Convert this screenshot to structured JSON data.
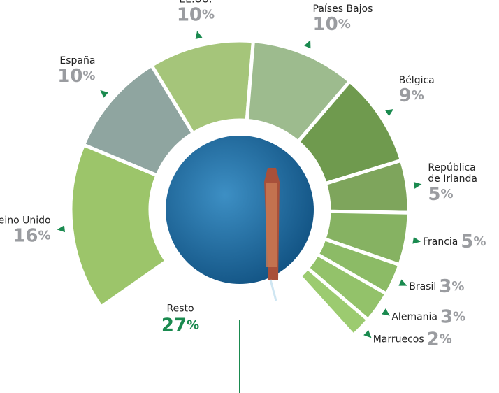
{
  "chart_data": {
    "type": "pie",
    "categories": [
      "Reino Unido",
      "España",
      "EE.UU.",
      "Países Bajos",
      "Bélgica",
      "República de Irlanda",
      "Francia",
      "Brasil",
      "Alemania",
      "Marruecos",
      "Resto"
    ],
    "values": [
      16,
      10,
      10,
      10,
      9,
      5,
      5,
      3,
      3,
      2,
      27
    ],
    "unit": "%",
    "colors": [
      "#9cc56a",
      "#8fa5a0",
      "#a5c57a",
      "#9dbb8e",
      "#6f9a4e",
      "#7ea55c",
      "#86b262",
      "#8cbb66",
      "#93c26a",
      "#9ccb70",
      "none"
    ],
    "label_color": "#9a9ca0",
    "highlight_color": "#1a8a4f"
  }
}
